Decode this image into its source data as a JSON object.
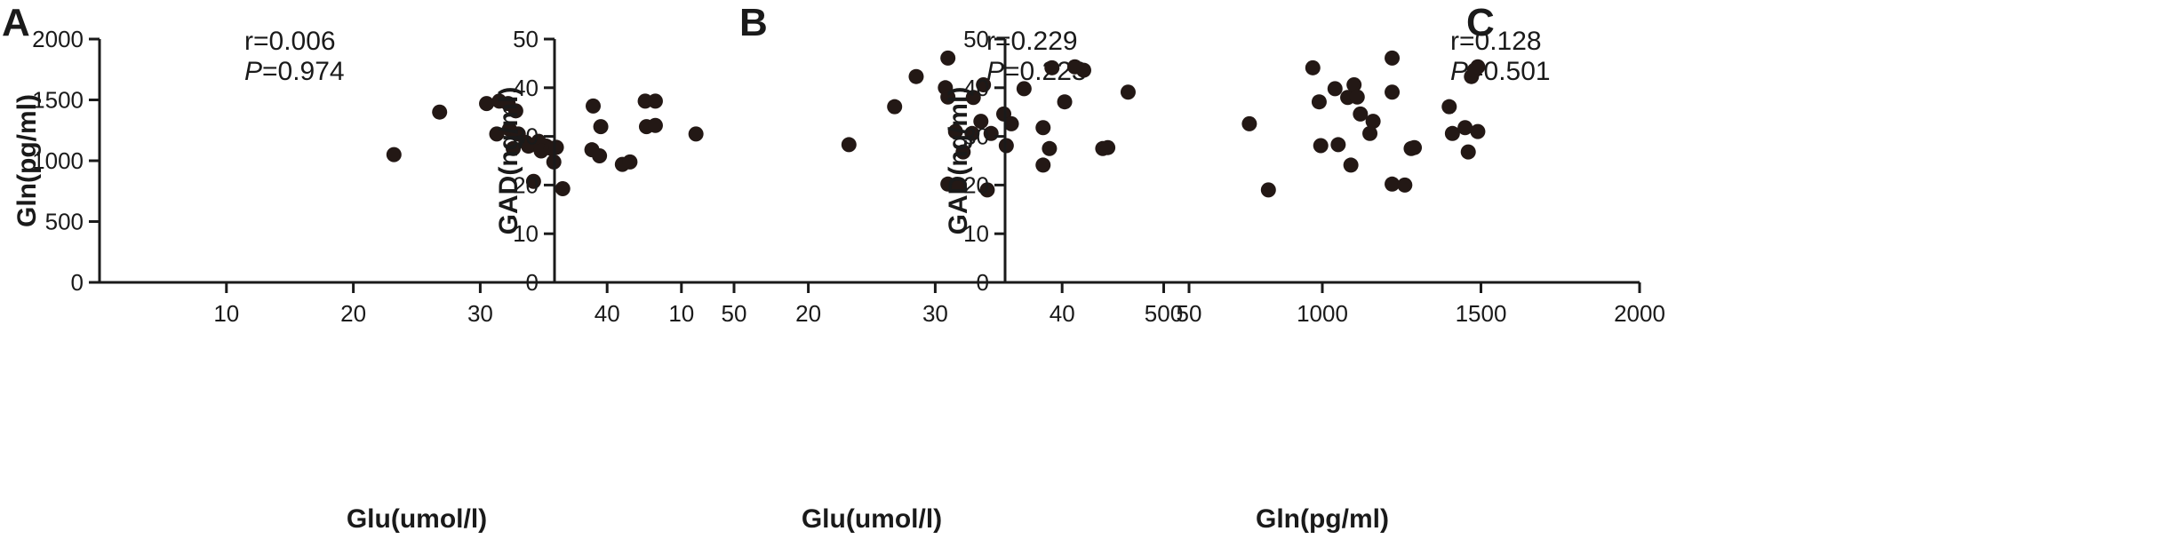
{
  "chart_data": [
    {
      "type": "scatter",
      "panel": "A",
      "xlabel": "Glu(umol/l)",
      "ylabel": "Gln(pg/ml)",
      "xlim": [
        0,
        50
      ],
      "ylim": [
        0,
        2000
      ],
      "xticks": [
        10,
        20,
        30,
        40,
        50
      ],
      "yticks": [
        0,
        500,
        1000,
        1500,
        2000
      ],
      "stats": {
        "r": "r=0.006",
        "p_symbol": "P",
        "p_value": "=0.974"
      },
      "points": [
        {
          "x": 23.2,
          "y": 1050
        },
        {
          "x": 26.8,
          "y": 1400
        },
        {
          "x": 30.5,
          "y": 1470
        },
        {
          "x": 31.5,
          "y": 1490
        },
        {
          "x": 32.2,
          "y": 1470
        },
        {
          "x": 32.8,
          "y": 1410
        },
        {
          "x": 31.3,
          "y": 1220
        },
        {
          "x": 32.3,
          "y": 1260
        },
        {
          "x": 33.0,
          "y": 1220
        },
        {
          "x": 33.6,
          "y": 1150
        },
        {
          "x": 32.6,
          "y": 1100
        },
        {
          "x": 33.8,
          "y": 1120
        },
        {
          "x": 34.6,
          "y": 1160
        },
        {
          "x": 35.2,
          "y": 1120
        },
        {
          "x": 34.8,
          "y": 1080
        },
        {
          "x": 35.6,
          "y": 1100
        },
        {
          "x": 36.0,
          "y": 1110
        },
        {
          "x": 35.8,
          "y": 990
        },
        {
          "x": 34.2,
          "y": 830
        },
        {
          "x": 36.5,
          "y": 770
        },
        {
          "x": 38.9,
          "y": 1450
        },
        {
          "x": 39.5,
          "y": 1280
        },
        {
          "x": 38.8,
          "y": 1090
        },
        {
          "x": 39.4,
          "y": 1040
        },
        {
          "x": 41.2,
          "y": 970
        },
        {
          "x": 41.8,
          "y": 990
        },
        {
          "x": 43.0,
          "y": 1490
        },
        {
          "x": 43.8,
          "y": 1490
        },
        {
          "x": 43.1,
          "y": 1280
        },
        {
          "x": 43.8,
          "y": 1290
        },
        {
          "x": 47.0,
          "y": 1220
        }
      ]
    },
    {
      "type": "scatter",
      "panel": "B",
      "xlabel": "Glu(umol/l)",
      "ylabel": "GAD(ng/ml)",
      "xlim": [
        0,
        50
      ],
      "ylim": [
        0,
        50
      ],
      "xticks": [
        10,
        20,
        30,
        40,
        50
      ],
      "yticks": [
        0,
        10,
        20,
        30,
        40,
        50
      ],
      "stats": {
        "r": "r=0.229",
        "p_symbol": "P",
        "p_value": "=0.223"
      },
      "points": [
        {
          "x": 23.2,
          "y": 28.3
        },
        {
          "x": 26.8,
          "y": 36.1
        },
        {
          "x": 28.5,
          "y": 42.3
        },
        {
          "x": 31.0,
          "y": 46.1
        },
        {
          "x": 30.8,
          "y": 40.0
        },
        {
          "x": 31.0,
          "y": 38.1
        },
        {
          "x": 33.0,
          "y": 38.0
        },
        {
          "x": 33.8,
          "y": 40.6
        },
        {
          "x": 31.6,
          "y": 31.0
        },
        {
          "x": 32.9,
          "y": 30.6
        },
        {
          "x": 33.6,
          "y": 33.1
        },
        {
          "x": 34.4,
          "y": 30.6
        },
        {
          "x": 32.2,
          "y": 26.8
        },
        {
          "x": 31.0,
          "y": 20.2
        },
        {
          "x": 31.9,
          "y": 20.0
        },
        {
          "x": 34.1,
          "y": 19.0
        },
        {
          "x": 35.4,
          "y": 34.6
        },
        {
          "x": 36.0,
          "y": 32.6
        },
        {
          "x": 35.6,
          "y": 28.1
        },
        {
          "x": 37.0,
          "y": 39.8
        },
        {
          "x": 38.5,
          "y": 31.8
        },
        {
          "x": 39.0,
          "y": 27.5
        },
        {
          "x": 38.5,
          "y": 24.1
        },
        {
          "x": 39.2,
          "y": 44.1
        },
        {
          "x": 40.2,
          "y": 37.1
        },
        {
          "x": 41.0,
          "y": 44.3
        },
        {
          "x": 41.7,
          "y": 43.6
        },
        {
          "x": 43.2,
          "y": 27.5
        },
        {
          "x": 43.6,
          "y": 27.7
        },
        {
          "x": 45.2,
          "y": 39.1
        }
      ]
    },
    {
      "type": "scatter",
      "panel": "C",
      "xlabel": "Gln(pg/ml)",
      "ylabel": "GAD(ng/ml)",
      "xlim": [
        0,
        2000
      ],
      "ylim": [
        0,
        50
      ],
      "xticks": [
        500,
        1000,
        1500,
        2000
      ],
      "yticks": [
        0,
        10,
        20,
        30,
        40,
        50
      ],
      "stats": {
        "r": "r=0.128",
        "p_symbol": "P",
        "p_value": "=0.501"
      },
      "points": [
        {
          "x": 770,
          "y": 32.6
        },
        {
          "x": 830,
          "y": 19.0
        },
        {
          "x": 970,
          "y": 44.1
        },
        {
          "x": 990,
          "y": 37.1
        },
        {
          "x": 995,
          "y": 28.1
        },
        {
          "x": 1040,
          "y": 39.8
        },
        {
          "x": 1050,
          "y": 28.3
        },
        {
          "x": 1080,
          "y": 38.0
        },
        {
          "x": 1100,
          "y": 40.6
        },
        {
          "x": 1110,
          "y": 38.1
        },
        {
          "x": 1090,
          "y": 24.1
        },
        {
          "x": 1120,
          "y": 34.6
        },
        {
          "x": 1150,
          "y": 30.6
        },
        {
          "x": 1160,
          "y": 33.1
        },
        {
          "x": 1220,
          "y": 46.1
        },
        {
          "x": 1220,
          "y": 39.1
        },
        {
          "x": 1220,
          "y": 20.2
        },
        {
          "x": 1260,
          "y": 20.0
        },
        {
          "x": 1280,
          "y": 27.5
        },
        {
          "x": 1290,
          "y": 27.7
        },
        {
          "x": 1400,
          "y": 36.1
        },
        {
          "x": 1410,
          "y": 30.6
        },
        {
          "x": 1450,
          "y": 31.8
        },
        {
          "x": 1460,
          "y": 26.8
        },
        {
          "x": 1470,
          "y": 42.3
        },
        {
          "x": 1480,
          "y": 43.6
        },
        {
          "x": 1490,
          "y": 44.3
        },
        {
          "x": 1490,
          "y": 31.0
        }
      ]
    }
  ]
}
